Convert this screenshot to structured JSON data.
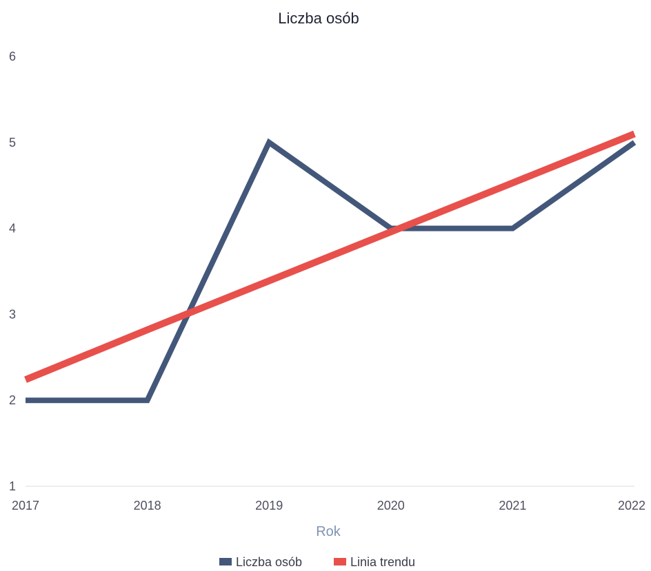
{
  "chart_data": {
    "type": "line",
    "title": "Liczba osób",
    "xlabel": "Rok",
    "ylabel": "",
    "categories": [
      "2017",
      "2018",
      "2019",
      "2020",
      "2021",
      "2022"
    ],
    "yticks": [
      "1",
      "2",
      "3",
      "4",
      "5",
      "6"
    ],
    "ylim": [
      1,
      6
    ],
    "grid": false,
    "legend_position": "bottom",
    "series": [
      {
        "name": "Liczba osób",
        "values": [
          2,
          2,
          5,
          4,
          4,
          5
        ],
        "color": "#43577a"
      },
      {
        "name": "Linia trendu",
        "values": [
          2.24,
          2.82,
          3.39,
          3.96,
          4.53,
          5.1
        ],
        "color": "#e8504c"
      }
    ]
  }
}
